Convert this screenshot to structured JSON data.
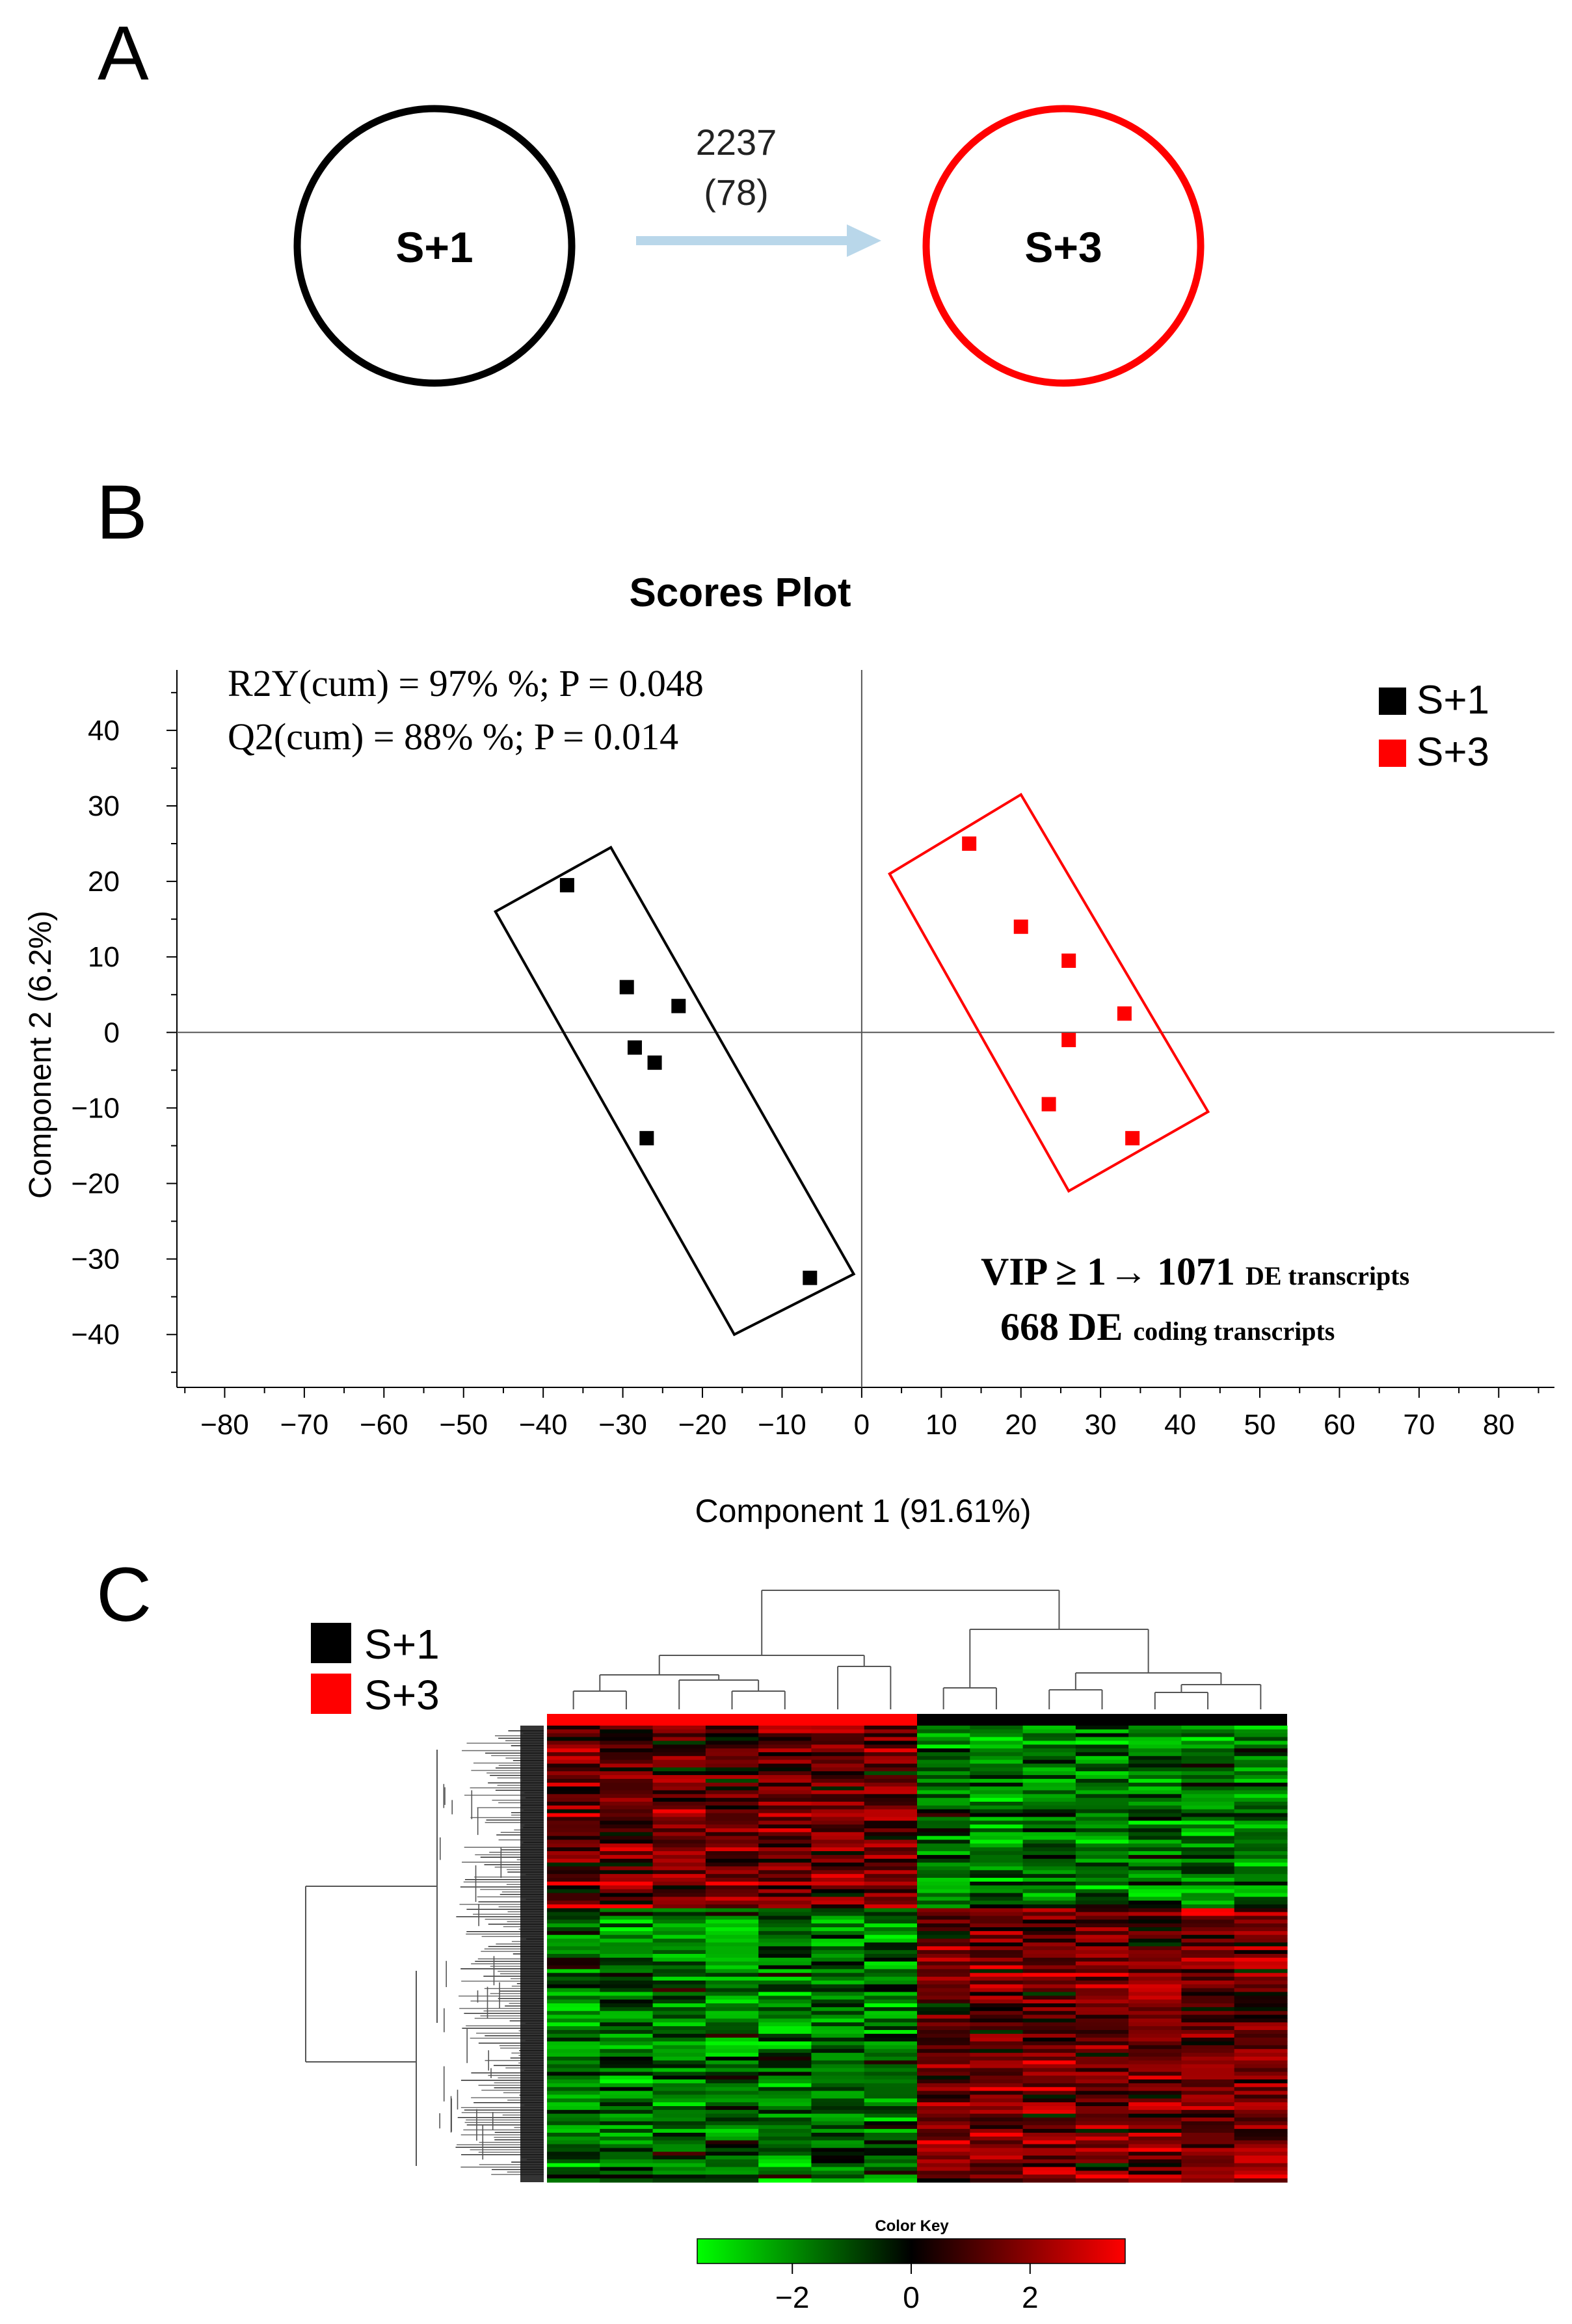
{
  "panel_a": {
    "label": "A",
    "node_left": "S+1",
    "node_right": "S+3",
    "transition_count": "2237",
    "transition_sub": "(78)",
    "colors": {
      "left": "#000000",
      "right": "#ff0000",
      "arrow": "#b9d7ea"
    }
  },
  "panel_b": {
    "label": "B",
    "stats_line1": "R2Y(cum) = 97% %; P = 0.048",
    "stats_line2": "Q2(cum) = 88% %; P = 0.014",
    "vip_main": "VIP ≥ 1",
    "vip_arrow": "→",
    "vip_count": "1071",
    "vip_suffix": "DE transcripts",
    "coding_count": "668 DE",
    "coding_suffix": "coding transcripts"
  },
  "panel_c": {
    "label": "C",
    "legend": [
      {
        "name": "S+1",
        "color": "#000000"
      },
      {
        "name": "S+3",
        "color": "#ff0000"
      }
    ],
    "color_key_title": "Color Key",
    "color_key_ticks": [
      "−2",
      "0",
      "2"
    ],
    "color_key_tick_values": [
      -2,
      0,
      2
    ],
    "color_key_range": [
      -3.6,
      3.6
    ],
    "color_key_colors": [
      "#00ff00",
      "#000000",
      "#ff0000"
    ],
    "n_columns": 14,
    "column_groups": [
      "S+3",
      "S+3",
      "S+3",
      "S+3",
      "S+3",
      "S+3",
      "S+3",
      "S+1",
      "S+1",
      "S+1",
      "S+1",
      "S+1",
      "S+1",
      "S+1"
    ]
  },
  "chart_data": {
    "type": "scatter",
    "title": "Scores Plot",
    "xlabel": "Component 1 (91.61%)",
    "ylabel": "Component 2 (6.2%)",
    "xlim": [
      -86,
      87
    ],
    "ylim": [
      -47,
      48
    ],
    "xticks": [
      -80,
      -70,
      -60,
      -50,
      -40,
      -30,
      -20,
      -10,
      0,
      10,
      20,
      30,
      40,
      50,
      60,
      70,
      80
    ],
    "yticks": [
      40,
      30,
      20,
      10,
      0,
      -10,
      -20,
      -30,
      -40
    ],
    "legend_position": "top-right",
    "series": [
      {
        "name": "S+1",
        "color": "#000000",
        "points": [
          {
            "x": -37,
            "y": 19.5
          },
          {
            "x": -29.5,
            "y": 6
          },
          {
            "x": -23,
            "y": 3.5
          },
          {
            "x": -28.5,
            "y": -2
          },
          {
            "x": -26,
            "y": -4
          },
          {
            "x": -27,
            "y": -14
          },
          {
            "x": -6.5,
            "y": -32.5
          }
        ],
        "ellipse_box": [
          {
            "x": -46,
            "y": 16
          },
          {
            "x": -31.5,
            "y": 24.5
          },
          {
            "x": -1,
            "y": -32
          },
          {
            "x": -16,
            "y": -40
          }
        ]
      },
      {
        "name": "S+3",
        "color": "#ff0000",
        "points": [
          {
            "x": 13.5,
            "y": 25
          },
          {
            "x": 20,
            "y": 14
          },
          {
            "x": 26,
            "y": 9.5
          },
          {
            "x": 33,
            "y": 2.5
          },
          {
            "x": 26,
            "y": -1
          },
          {
            "x": 23.5,
            "y": -9.5
          },
          {
            "x": 34,
            "y": -14
          }
        ],
        "ellipse_box": [
          {
            "x": 3.5,
            "y": 21
          },
          {
            "x": 20,
            "y": 31.5
          },
          {
            "x": 43.5,
            "y": -10.5
          },
          {
            "x": 26,
            "y": -21
          }
        ]
      }
    ]
  }
}
